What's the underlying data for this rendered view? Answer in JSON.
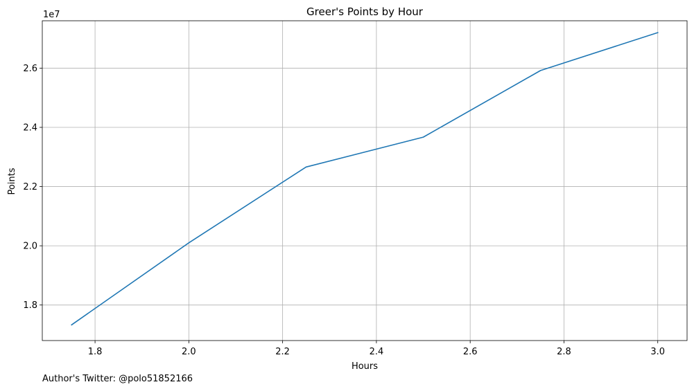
{
  "chart_data": {
    "type": "line",
    "title": "Greer's Points by Hour",
    "xlabel": "Hours",
    "ylabel": "Points",
    "y_offset_label": "1e7",
    "y_scale": 10000000,
    "xlim": [
      1.6875,
      3.0625
    ],
    "ylim": [
      16.8,
      27.6
    ],
    "grid": true,
    "x_ticks": [
      1.8,
      2.0,
      2.2,
      2.4,
      2.6,
      2.8,
      3.0
    ],
    "x_tick_labels": [
      "1.8",
      "2.0",
      "2.2",
      "2.4",
      "2.6",
      "2.8",
      "3.0"
    ],
    "y_ticks": [
      18,
      20,
      22,
      24,
      26
    ],
    "y_tick_labels": [
      "1.8",
      "2.0",
      "2.2",
      "2.4",
      "2.6"
    ],
    "series": [
      {
        "name": "Points",
        "color": "#1f77b4",
        "x": [
          1.75,
          2.0,
          2.25,
          2.5,
          2.75,
          3.0
        ],
        "y": [
          17.33,
          20.1,
          22.66,
          23.67,
          25.92,
          27.2
        ]
      }
    ]
  },
  "footer": {
    "text": "Author's Twitter: @polo51852166"
  },
  "colors": {
    "grid": "#b0b0b0",
    "axes": "#000000"
  }
}
